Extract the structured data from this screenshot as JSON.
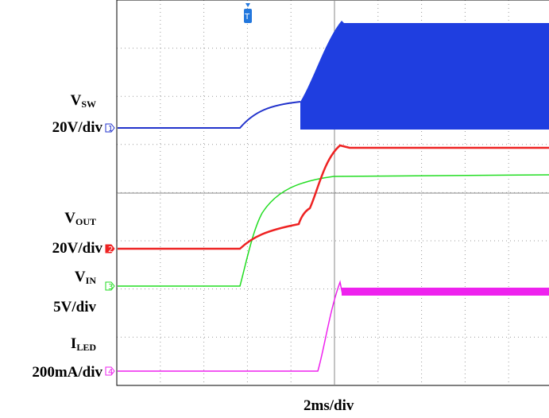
{
  "channels": [
    {
      "name": "V",
      "sub": "SW",
      "scale": "20V/div",
      "marker": "1"
    },
    {
      "name": "V",
      "sub": "OUT",
      "scale": "20V/div",
      "marker": "2"
    },
    {
      "name": "V",
      "sub": "IN",
      "scale": "5V/div",
      "marker": "3"
    },
    {
      "name": "I",
      "sub": "LED",
      "scale": "200mA/div",
      "marker": "4"
    }
  ],
  "trigger": "T",
  "timebase": "2ms/div"
}
